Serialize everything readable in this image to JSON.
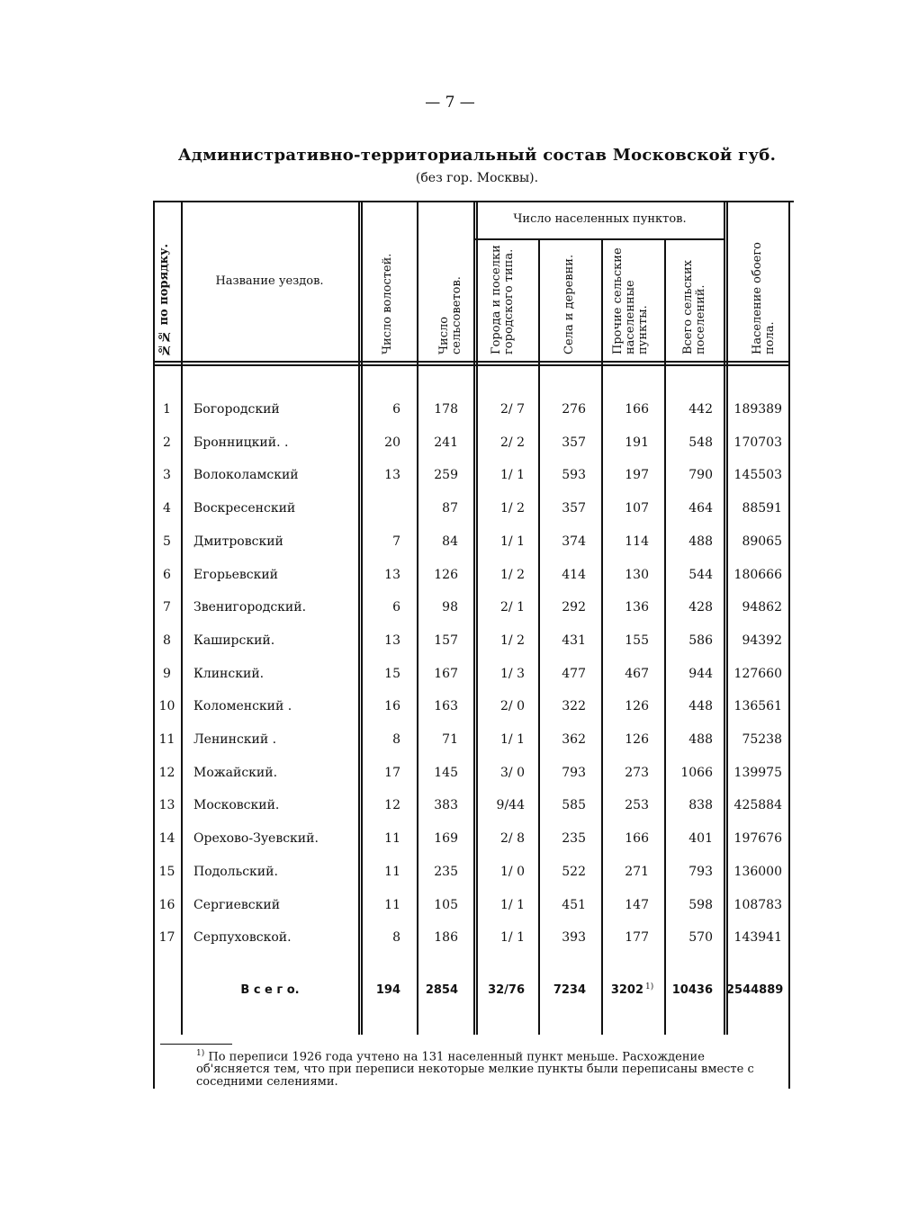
{
  "page_number": "— 7 —",
  "title": "Административно-территориальный состав Московской губ.",
  "subtitle": "(без гор. Москвы).",
  "table": {
    "group_header": "Число населенных пунктов.",
    "columns": {
      "index": "№№ по порядку.",
      "name": "Название уездов.",
      "volosts": "Число волостей.",
      "selsovets": "Число сельсоветов.",
      "towns": "Города и поселки городского типа.",
      "villages": "Села и деревни.",
      "other": "Прочие сельские населенные пункты.",
      "total_rural": "Всего сельских поселений.",
      "population": "Население обоего пола."
    },
    "rows": [
      {
        "index": "1",
        "name": "Богородский",
        "volosts": "6",
        "selsovets": "178",
        "towns": "2/ 7",
        "villages": "276",
        "other": "166",
        "total_rural": "442",
        "population": "189389"
      },
      {
        "index": "2",
        "name": "Бронницкий. .",
        "volosts": "20",
        "selsovets": "241",
        "towns": "2/ 2",
        "villages": "357",
        "other": "191",
        "total_rural": "548",
        "population": "170703"
      },
      {
        "index": "3",
        "name": "Волоколамский",
        "volosts": "13",
        "selsovets": "259",
        "towns": "1/ 1",
        "villages": "593",
        "other": "197",
        "total_rural": "790",
        "population": "145503"
      },
      {
        "index": "4",
        "name": "Воскресенский",
        "volosts": "",
        "selsovets": "87",
        "towns": "1/ 2",
        "villages": "357",
        "other": "107",
        "total_rural": "464",
        "population": "88591"
      },
      {
        "index": "5",
        "name": "Дмитровский",
        "volosts": "7",
        "selsovets": "84",
        "towns": "1/ 1",
        "villages": "374",
        "other": "114",
        "total_rural": "488",
        "population": "89065"
      },
      {
        "index": "6",
        "name": "Егорьевский",
        "volosts": "13",
        "selsovets": "126",
        "towns": "1/ 2",
        "villages": "414",
        "other": "130",
        "total_rural": "544",
        "population": "180666"
      },
      {
        "index": "7",
        "name": "Звенигородский.",
        "volosts": "6",
        "selsovets": "98",
        "towns": "2/ 1",
        "villages": "292",
        "other": "136",
        "total_rural": "428",
        "population": "94862"
      },
      {
        "index": "8",
        "name": "Каширский.",
        "volosts": "13",
        "selsovets": "157",
        "towns": "1/ 2",
        "villages": "431",
        "other": "155",
        "total_rural": "586",
        "population": "94392"
      },
      {
        "index": "9",
        "name": "Клинский.",
        "volosts": "15",
        "selsovets": "167",
        "towns": "1/ 3",
        "villages": "477",
        "other": "467",
        "total_rural": "944",
        "population": "127660"
      },
      {
        "index": "10",
        "name": "Коломенский .",
        "volosts": "16",
        "selsovets": "163",
        "towns": "2/ 0",
        "villages": "322",
        "other": "126",
        "total_rural": "448",
        "population": "136561"
      },
      {
        "index": "11",
        "name": "Ленинский .",
        "volosts": "8",
        "selsovets": "71",
        "towns": "1/ 1",
        "villages": "362",
        "other": "126",
        "total_rural": "488",
        "population": "75238"
      },
      {
        "index": "12",
        "name": "Можайский.",
        "volosts": "17",
        "selsovets": "145",
        "towns": "3/ 0",
        "villages": "793",
        "other": "273",
        "total_rural": "1066",
        "population": "139975"
      },
      {
        "index": "13",
        "name": "Московский.",
        "volosts": "12",
        "selsovets": "383",
        "towns": "9/44",
        "villages": "585",
        "other": "253",
        "total_rural": "838",
        "population": "425884"
      },
      {
        "index": "14",
        "name": "Орехово-Зуевский.",
        "volosts": "11",
        "selsovets": "169",
        "towns": "2/ 8",
        "villages": "235",
        "other": "166",
        "total_rural": "401",
        "population": "197676"
      },
      {
        "index": "15",
        "name": "Подольский.",
        "volosts": "11",
        "selsovets": "235",
        "towns": "1/ 0",
        "villages": "522",
        "other": "271",
        "total_rural": "793",
        "population": "136000"
      },
      {
        "index": "16",
        "name": "Сергиевский",
        "volosts": "11",
        "selsovets": "105",
        "towns": "1/ 1",
        "villages": "451",
        "other": "147",
        "total_rural": "598",
        "population": "108783"
      },
      {
        "index": "17",
        "name": "Серпуховской.",
        "volosts": "8",
        "selsovets": "186",
        "towns": "1/ 1",
        "villages": "393",
        "other": "177",
        "total_rural": "570",
        "population": "143941"
      }
    ],
    "total": {
      "label": "В с е г о.",
      "volosts": "194",
      "selsovets": "2854",
      "towns": "32/76",
      "villages": "7234",
      "other": "3202",
      "other_note": "1)",
      "total_rural": "10436",
      "population": "2544889"
    }
  },
  "footnote": {
    "marker": "1)",
    "text": "По переписи 1926 года учтено на 131 населенный пункт меньше. Расхождение об'ясняется тем, что при переписи некоторые мелкие пункты были переписаны вместе с соседними селениями."
  }
}
